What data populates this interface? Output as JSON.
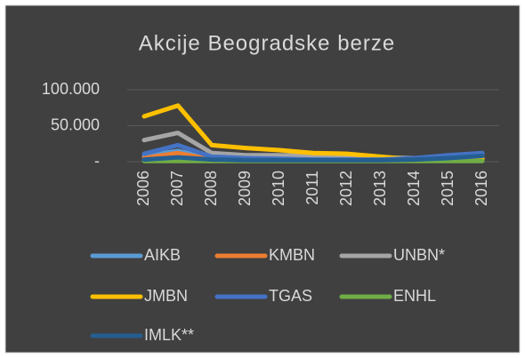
{
  "chart_data": {
    "type": "line",
    "title": "Akcije Beogradske berze",
    "categories": [
      "2006",
      "2007",
      "2008",
      "2009",
      "2010",
      "2011",
      "2012",
      "2013",
      "2014",
      "2015",
      "2016"
    ],
    "series": [
      {
        "name": "AIKB",
        "color": "#5b9bd5",
        "values": [
          8000,
          15000,
          5000,
          4000,
          3000,
          3000,
          3000,
          3000,
          4000,
          7000,
          10000
        ]
      },
      {
        "name": "KMBN",
        "color": "#ed7d31",
        "values": [
          5000,
          12000,
          3000,
          2000,
          2000,
          2000,
          2000,
          2000,
          2000,
          2000,
          2000
        ]
      },
      {
        "name": "UNBN*",
        "color": "#a5a5a5",
        "values": [
          30000,
          40000,
          12000,
          9000,
          9000,
          8000,
          8000,
          6000,
          5000,
          5000,
          5000
        ]
      },
      {
        "name": "JMBN",
        "color": "#ffc000",
        "values": [
          63000,
          78000,
          23000,
          19000,
          16000,
          12000,
          11000,
          7000,
          3000,
          3000,
          3000
        ]
      },
      {
        "name": "TGAS",
        "color": "#4472c4",
        "values": [
          11000,
          23000,
          7000,
          5000,
          4000,
          3000,
          3000,
          3000,
          5000,
          9000,
          12000
        ]
      },
      {
        "name": "ENHL",
        "color": "#70ad47",
        "values": [
          1000,
          1000,
          1000,
          1000,
          1000,
          1000,
          1000,
          1000,
          1000,
          1000,
          1000
        ]
      },
      {
        "name": "IMLK**",
        "color": "#255e91",
        "values": [
          3000,
          6000,
          3000,
          2000,
          2000,
          2000,
          2000,
          2000,
          3000,
          5000,
          8000
        ]
      }
    ],
    "ylim": [
      0,
      100000
    ],
    "yticks": [
      {
        "value": 0,
        "label": "-"
      },
      {
        "value": 50000,
        "label": "50.000"
      },
      {
        "value": 100000,
        "label": "100.000"
      }
    ],
    "grid": true
  }
}
